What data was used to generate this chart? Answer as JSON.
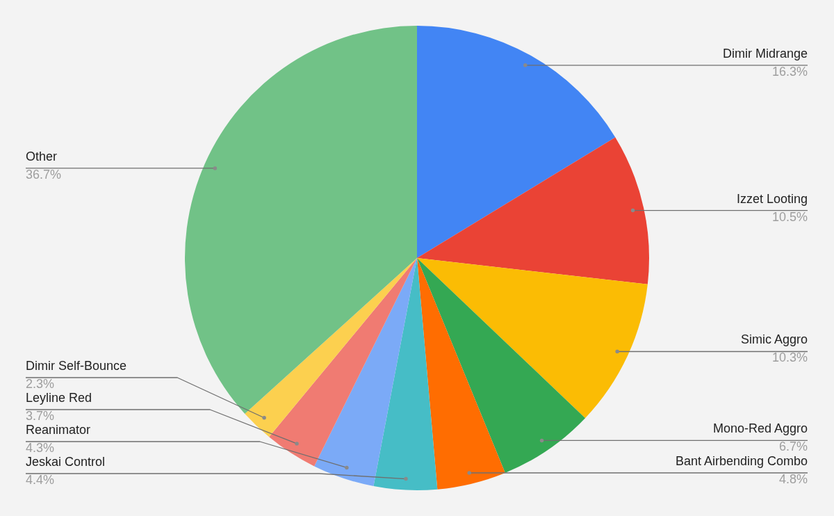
{
  "chart_data": {
    "type": "pie",
    "categories": [
      "Dimir Midrange",
      "Izzet Looting",
      "Simic Aggro",
      "Mono-Red Aggro",
      "Bant Airbending Combo",
      "Jeskai Control",
      "Reanimator",
      "Leyline Red",
      "Dimir Self-Bounce",
      "Other"
    ],
    "values": [
      16.3,
      10.5,
      10.3,
      6.7,
      4.8,
      4.4,
      4.3,
      3.7,
      2.3,
      36.7
    ],
    "colors": [
      "#4285f4",
      "#ea4335",
      "#fbbc04",
      "#34a853",
      "#ff6d01",
      "#46bdc6",
      "#7baaf7",
      "#f07b72",
      "#fcd04f",
      "#71c287"
    ],
    "value_labels": [
      "16.3%",
      "10.5%",
      "10.3%",
      "6.7%",
      "4.8%",
      "4.4%",
      "4.3%",
      "3.7%",
      "2.3%",
      "36.7%"
    ]
  }
}
